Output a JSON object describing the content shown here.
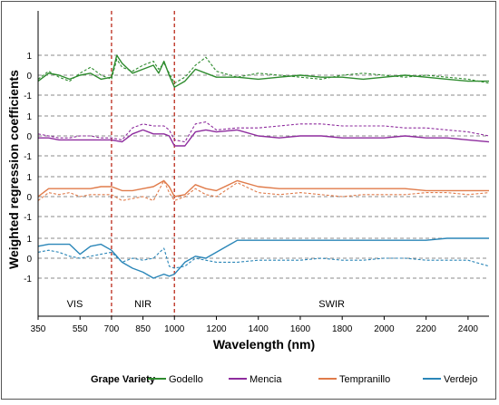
{
  "chart_data": {
    "type": "line",
    "xlabel": "Wavelength (nm)",
    "ylabel": "Weighted regression coefficients",
    "xlim": [
      350,
      2500
    ],
    "x_ticks": [
      350,
      550,
      700,
      850,
      1000,
      1200,
      1400,
      1600,
      1800,
      2000,
      2200,
      2400
    ],
    "panel_y_ticks": [
      "1",
      "0",
      "-1"
    ],
    "ylim_per_panel": [
      -1,
      1
    ],
    "gridlines": "dashed horizontal at -1, 0, 1 in each panel",
    "vertical_markers": [
      {
        "x": 700,
        "style": "dashed",
        "color": "#c0392b"
      },
      {
        "x": 1000,
        "style": "dashed",
        "color": "#c0392b"
      }
    ],
    "region_labels": [
      {
        "text": "VIS",
        "x": 525
      },
      {
        "text": "NIR",
        "x": 850
      },
      {
        "text": "SWIR",
        "x": 1750
      }
    ],
    "legend": {
      "title": "Grape Variety",
      "position": "bottom"
    },
    "series": [
      {
        "name": "Godello",
        "color": "#2e8b2e",
        "x": [
          350,
          400,
          450,
          500,
          550,
          600,
          650,
          700,
          725,
          750,
          800,
          850,
          900,
          925,
          950,
          975,
          1000,
          1050,
          1100,
          1150,
          1200,
          1300,
          1400,
          1500,
          1600,
          1700,
          1800,
          1900,
          2000,
          2100,
          2200,
          2300,
          2400,
          2500
        ],
        "solid": [
          -0.3,
          0.1,
          0.0,
          -0.2,
          0.0,
          0.1,
          -0.2,
          -0.1,
          1.0,
          0.6,
          0.1,
          0.3,
          0.5,
          0.1,
          0.7,
          0.0,
          -0.6,
          -0.3,
          0.3,
          0.1,
          -0.1,
          -0.1,
          -0.2,
          -0.1,
          0.0,
          -0.1,
          -0.1,
          -0.2,
          -0.1,
          0.0,
          -0.1,
          -0.2,
          -0.3,
          -0.3
        ],
        "dashed": [
          -0.2,
          0.2,
          -0.1,
          -0.3,
          0.1,
          0.4,
          0.0,
          -0.2,
          0.8,
          0.4,
          0.2,
          0.5,
          0.7,
          0.3,
          0.6,
          0.1,
          -0.4,
          -0.1,
          0.5,
          0.9,
          0.2,
          -0.1,
          0.1,
          0.0,
          -0.1,
          -0.2,
          0.0,
          0.1,
          0.0,
          -0.1,
          0.0,
          -0.1,
          -0.2,
          -0.4
        ]
      },
      {
        "name": "Mencia",
        "color": "#8e2c9e",
        "x": [
          350,
          400,
          450,
          500,
          550,
          600,
          650,
          700,
          750,
          800,
          850,
          900,
          950,
          975,
          1000,
          1050,
          1100,
          1150,
          1200,
          1300,
          1400,
          1500,
          1600,
          1700,
          1800,
          1900,
          2000,
          2100,
          2200,
          2300,
          2400,
          2500
        ],
        "solid": [
          -0.1,
          -0.1,
          -0.2,
          -0.2,
          -0.2,
          -0.2,
          -0.2,
          -0.2,
          -0.3,
          0.1,
          0.3,
          0.1,
          0.1,
          0.0,
          -0.5,
          -0.5,
          0.2,
          0.3,
          0.2,
          0.3,
          0.0,
          -0.1,
          0.0,
          0.0,
          -0.1,
          -0.1,
          -0.1,
          0.0,
          -0.1,
          -0.1,
          -0.2,
          -0.3
        ],
        "dashed": [
          0.1,
          0.0,
          -0.1,
          -0.1,
          0.0,
          0.0,
          -0.1,
          -0.1,
          -0.2,
          0.4,
          0.6,
          0.5,
          0.5,
          0.3,
          -0.2,
          -0.3,
          0.6,
          0.7,
          0.3,
          0.4,
          0.4,
          0.5,
          0.6,
          0.6,
          0.5,
          0.5,
          0.5,
          0.4,
          0.4,
          0.3,
          0.2,
          0.0
        ]
      },
      {
        "name": "Tempranillo",
        "color": "#e07b4a",
        "x": [
          350,
          400,
          450,
          500,
          550,
          600,
          650,
          700,
          750,
          800,
          850,
          900,
          950,
          975,
          1000,
          1050,
          1100,
          1150,
          1200,
          1300,
          1400,
          1500,
          1600,
          1700,
          1800,
          1900,
          2000,
          2100,
          2200,
          2300,
          2400,
          2500
        ],
        "solid": [
          0.0,
          0.4,
          0.4,
          0.4,
          0.4,
          0.4,
          0.5,
          0.5,
          0.3,
          0.3,
          0.4,
          0.5,
          0.8,
          0.5,
          0.0,
          0.1,
          0.6,
          0.4,
          0.3,
          0.8,
          0.5,
          0.4,
          0.4,
          0.4,
          0.4,
          0.4,
          0.4,
          0.4,
          0.3,
          0.3,
          0.3,
          0.3
        ],
        "dashed": [
          -0.2,
          0.2,
          0.1,
          0.2,
          0.0,
          0.1,
          0.1,
          0.1,
          -0.2,
          -0.1,
          0.0,
          -0.2,
          0.8,
          0.2,
          -0.2,
          0.0,
          0.4,
          0.1,
          0.0,
          0.7,
          0.2,
          0.1,
          0.2,
          0.1,
          0.0,
          0.1,
          0.1,
          0.1,
          0.2,
          0.2,
          0.1,
          0.2
        ]
      },
      {
        "name": "Verdejo",
        "color": "#2a86b8",
        "x": [
          350,
          400,
          450,
          500,
          550,
          600,
          650,
          700,
          750,
          800,
          850,
          900,
          950,
          975,
          1000,
          1050,
          1100,
          1150,
          1200,
          1300,
          1400,
          1500,
          1600,
          1700,
          1800,
          1900,
          2000,
          2100,
          2200,
          2300,
          2400,
          2500
        ],
        "solid": [
          0.6,
          0.7,
          0.7,
          0.7,
          0.2,
          0.6,
          0.7,
          0.4,
          -0.2,
          -0.5,
          -0.7,
          -1.0,
          -0.8,
          -0.9,
          -0.8,
          -0.2,
          0.1,
          0.0,
          0.3,
          0.9,
          0.9,
          0.9,
          0.9,
          0.9,
          0.9,
          0.9,
          0.9,
          0.9,
          0.9,
          1.0,
          1.0,
          1.0
        ],
        "dashed": [
          0.3,
          0.4,
          0.3,
          0.1,
          0.0,
          0.1,
          0.2,
          0.3,
          -0.2,
          0.0,
          -0.1,
          0.0,
          0.5,
          -0.4,
          -0.5,
          -0.4,
          0.0,
          -0.1,
          -0.2,
          -0.2,
          -0.1,
          -0.1,
          -0.1,
          0.0,
          -0.1,
          -0.1,
          0.0,
          0.0,
          -0.1,
          -0.1,
          -0.1,
          -0.4
        ]
      }
    ]
  }
}
